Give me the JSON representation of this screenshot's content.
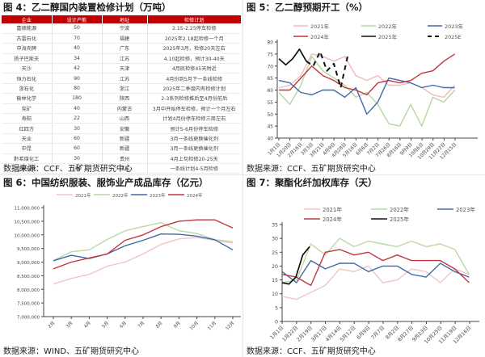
{
  "fig4": {
    "title": "图 4：乙二醇国内装置检修计划（万吨）",
    "source": "数据来源：CCF、五矿期货研究中心",
    "table": {
      "headers": [
        "企业",
        "设计产能",
        "地址",
        "检修计划"
      ],
      "rows": [
        [
          "富德能源",
          "50",
          "宁波",
          "2.15-2.25停车检修"
        ],
        [
          "古雷石化",
          "70",
          "福建",
          "2025年2.18起检修一个月"
        ],
        [
          "中海壳牌",
          "40",
          "广东",
          "2025年3月，检修20天左右"
        ],
        [
          "扬子巴斯夫",
          "34",
          "江苏",
          "4.10起检修，预计30-40天"
        ],
        [
          "天沙",
          "42",
          "天津",
          "4月底检修45天附近"
        ],
        [
          "恒力石化",
          "90",
          "江苏",
          "4月份到5月下一条线检修"
        ],
        [
          "浙石化",
          "80",
          "浙江",
          "2025年二季度内有检修计划"
        ],
        [
          "榆林化学",
          "180",
          "陕西",
          "2-3系列检修推后至4月份前后"
        ],
        [
          "兖矿",
          "40",
          "内蒙古",
          "3月中开始停车检修，预计一个月左右"
        ],
        [
          "寿阳",
          "22",
          "山西",
          "计划4月份停车检修三周左右"
        ],
        [
          "红四方",
          "30",
          "安徽",
          "预计5-6月份停车检修"
        ],
        [
          "天业",
          "60",
          "新疆",
          "3月一条线更换催化剂"
        ],
        [
          "中昆",
          "60",
          "新疆",
          "3月一条线更换催化剂"
        ],
        [
          "黔希煤化工",
          "30",
          "贵州",
          "4月上旬检修20-25天"
        ],
        [
          "卫星石化",
          "180",
          "江苏",
          "一条线计划4-5月检修"
        ]
      ]
    }
  },
  "fig5": {
    "title": "图 5：乙二醇预期开工（%）",
    "source": "数据来源：CCF、五矿期货研究中心"
  },
  "fig6": {
    "title": "图 6：中国纺织服装、服饰业产成品库存（亿元）",
    "source": "数据来源：WIND、五矿期货研究中心"
  },
  "fig7": {
    "title": "图 7：聚酯化纤加权库存（天）",
    "source": "数据来源：CCF、五矿期货研究中心"
  },
  "chart_data": [
    {
      "id": "fig5",
      "type": "line",
      "title": "乙二醇预期开工（%）",
      "ylabel": "%",
      "ylim": [
        40,
        80
      ],
      "yticks": [
        40,
        45,
        50,
        55,
        60,
        65,
        70,
        75,
        80
      ],
      "grid": false,
      "legend_position": "top",
      "categories": [
        "1月1日",
        "1月20日",
        "2月16日",
        "3月3日",
        "3月21日",
        "4月9日",
        "4月28日",
        "5月16日",
        "6月6日",
        "7月2日",
        "7月26日",
        "8月16日",
        "9月9日",
        "10月6日",
        "10月29日",
        "11月22日",
        "12月15日"
      ],
      "series": [
        {
          "name": "2021年",
          "color": "#f2b8bd",
          "style": "solid",
          "values": [
            61,
            62,
            66,
            75,
            74,
            72,
            74,
            66,
            64,
            66,
            62,
            62,
            63,
            61,
            58,
            57,
            62
          ]
        },
        {
          "name": "2022年",
          "color": "#b5d6a0",
          "style": "solid",
          "values": [
            59,
            54,
            62,
            74,
            68,
            65,
            62,
            57,
            59,
            54,
            46,
            45,
            54,
            45,
            57,
            55,
            60
          ]
        },
        {
          "name": "2023年",
          "color": "#3f6aa8",
          "style": "solid",
          "values": [
            64,
            63,
            59,
            58,
            60,
            60,
            57,
            61,
            50,
            55,
            65,
            64,
            63,
            61,
            62,
            61,
            61
          ]
        },
        {
          "name": "2024年",
          "color": "#c0373f",
          "style": "solid",
          "values": [
            60,
            60,
            65,
            70,
            66,
            64,
            61,
            60,
            58,
            63,
            64,
            63,
            64,
            67,
            68,
            72,
            75
          ]
        },
        {
          "name": "2025年",
          "color": "#111111",
          "style": "solid",
          "values": [
            73,
            70.5,
            73,
            77,
            72
          ]
        },
        {
          "name": "2025E",
          "color": "#111111",
          "style": "dashed",
          "values": [
            null,
            null,
            null,
            null,
            72,
            70,
            76,
            68,
            71,
            61,
            74
          ]
        }
      ]
    },
    {
      "id": "fig6",
      "type": "line",
      "title": "中国纺织服装、服饰业产成品库存（亿元）",
      "ylabel": "亿元",
      "ylim": [
        7000000,
        11000000
      ],
      "yticks": [
        "7,000,000",
        "7,500,000",
        "8,000,000",
        "8,500,000",
        "9,000,000",
        "9,500,000",
        "10,000,000",
        "10,500,000",
        "11,000,000"
      ],
      "grid": false,
      "legend_position": "top",
      "categories": [
        "2月",
        "3月",
        "4月",
        "5月",
        "6月",
        "7月",
        "8月",
        "9月",
        "10月",
        "11月",
        "12月"
      ],
      "series": [
        {
          "name": "2021年",
          "color": "#f2c4c8",
          "values": [
            8200000,
            8400000,
            8550000,
            8850000,
            9000000,
            9300000,
            9650000,
            9850000,
            9900000,
            9800000,
            9700000
          ]
        },
        {
          "name": "2022年",
          "color": "#b9d9a5",
          "values": [
            9050000,
            9380000,
            9450000,
            9830000,
            10150000,
            10300000,
            10450000,
            10150000,
            10050000,
            9820000,
            9750000
          ]
        },
        {
          "name": "2023年",
          "color": "#3f6aa8",
          "values": [
            9050000,
            9250000,
            9130000,
            9300000,
            9600000,
            9800000,
            10030000,
            10020000,
            9950000,
            9820000,
            9450000
          ]
        },
        {
          "name": "2024年",
          "color": "#c0373f",
          "values": [
            8750000,
            9000000,
            9150000,
            9300000,
            9800000,
            10000000,
            10300000,
            10500000,
            10550000,
            10550000,
            10250000
          ]
        }
      ]
    },
    {
      "id": "fig7",
      "type": "line",
      "title": "聚酯化纤加权库存（天）",
      "ylabel": "天",
      "ylim": [
        0,
        35
      ],
      "yticks": [
        0,
        5,
        10,
        15,
        20,
        25,
        30,
        35
      ],
      "grid": false,
      "legend_position": "top",
      "categories": [
        "1月1日",
        "1月22日",
        "2月19日",
        "3月17日",
        "4月14日",
        "5月12日",
        "6月9日",
        "7月7日",
        "8月2日",
        "8月27日",
        "9月23日",
        "10月25日",
        "11月19日",
        "12月16日"
      ],
      "series": [
        {
          "name": "2021年",
          "color": "#f2c4c8",
          "values": [
            9,
            8,
            10.5,
            13,
            19,
            18,
            20,
            14,
            15,
            19,
            18,
            14,
            19,
            17
          ]
        },
        {
          "name": "2022年",
          "color": "#b9d9a5",
          "values": [
            14,
            15,
            28,
            24,
            30,
            27,
            29,
            28,
            27,
            29,
            27,
            28,
            26,
            17
          ]
        },
        {
          "name": "2023年",
          "color": "#3f6aa8",
          "values": [
            18,
            14,
            22,
            19,
            21,
            21,
            18,
            20,
            20,
            17,
            16,
            21,
            18,
            16
          ]
        },
        {
          "name": "2024年",
          "color": "#c0373f",
          "values": [
            17,
            16,
            13,
            25,
            26,
            24,
            25,
            22,
            24,
            22,
            22,
            22,
            19,
            14
          ]
        },
        {
          "name": "2025年",
          "color": "#111111",
          "values": [
            14,
            13.5,
            16,
            24,
            27
          ]
        }
      ]
    }
  ]
}
